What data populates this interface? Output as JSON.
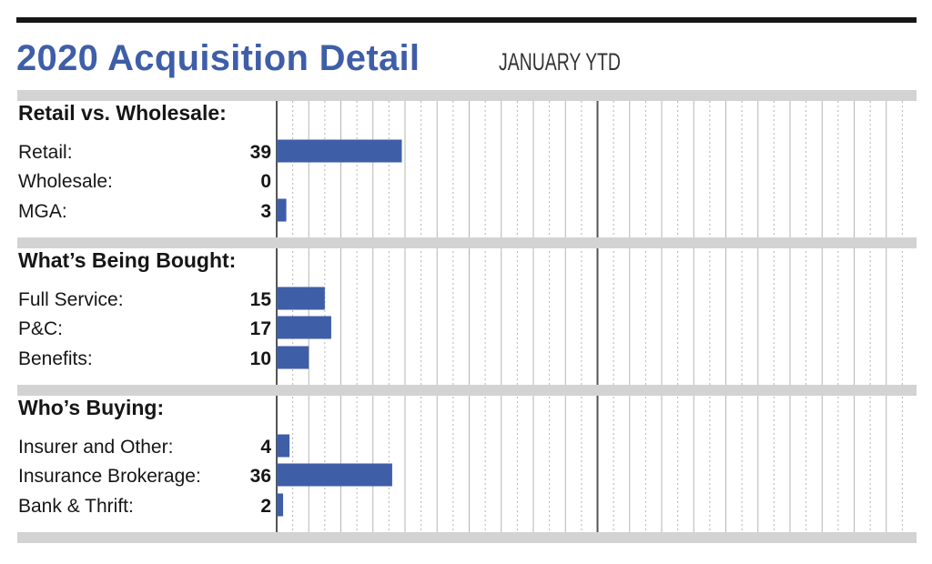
{
  "title": "2020 Acquisition Detail",
  "subtitle": "JANUARY YTD",
  "colors": {
    "bar": "#3f5ea8",
    "title": "#3f5ea8",
    "band": "#d3d3d3",
    "text": "#161616",
    "major_grid": "#555555",
    "minor_grid": "#b5b5b5"
  },
  "chart_data": {
    "type": "bar",
    "orientation": "horizontal",
    "title": "2020 Acquisition Detail",
    "subtitle": "JANUARY YTD",
    "xlim": [
      0,
      200
    ],
    "grid": true,
    "data_labels": "left of bars",
    "groups": [
      {
        "name": "Retail vs. Wholesale:",
        "categories": [
          "Retail:",
          "Wholesale:",
          "MGA:"
        ],
        "values": [
          39,
          0,
          3
        ]
      },
      {
        "name": "What’s Being Bought:",
        "categories": [
          "Full Service:",
          "P&C:",
          "Benefits:"
        ],
        "values": [
          15,
          17,
          10
        ]
      },
      {
        "name": "Who’s Buying:",
        "categories": [
          "Insurer and Other:",
          "Insurance Brokerage:",
          "Bank & Thrift:"
        ],
        "values": [
          4,
          36,
          2
        ]
      }
    ]
  }
}
